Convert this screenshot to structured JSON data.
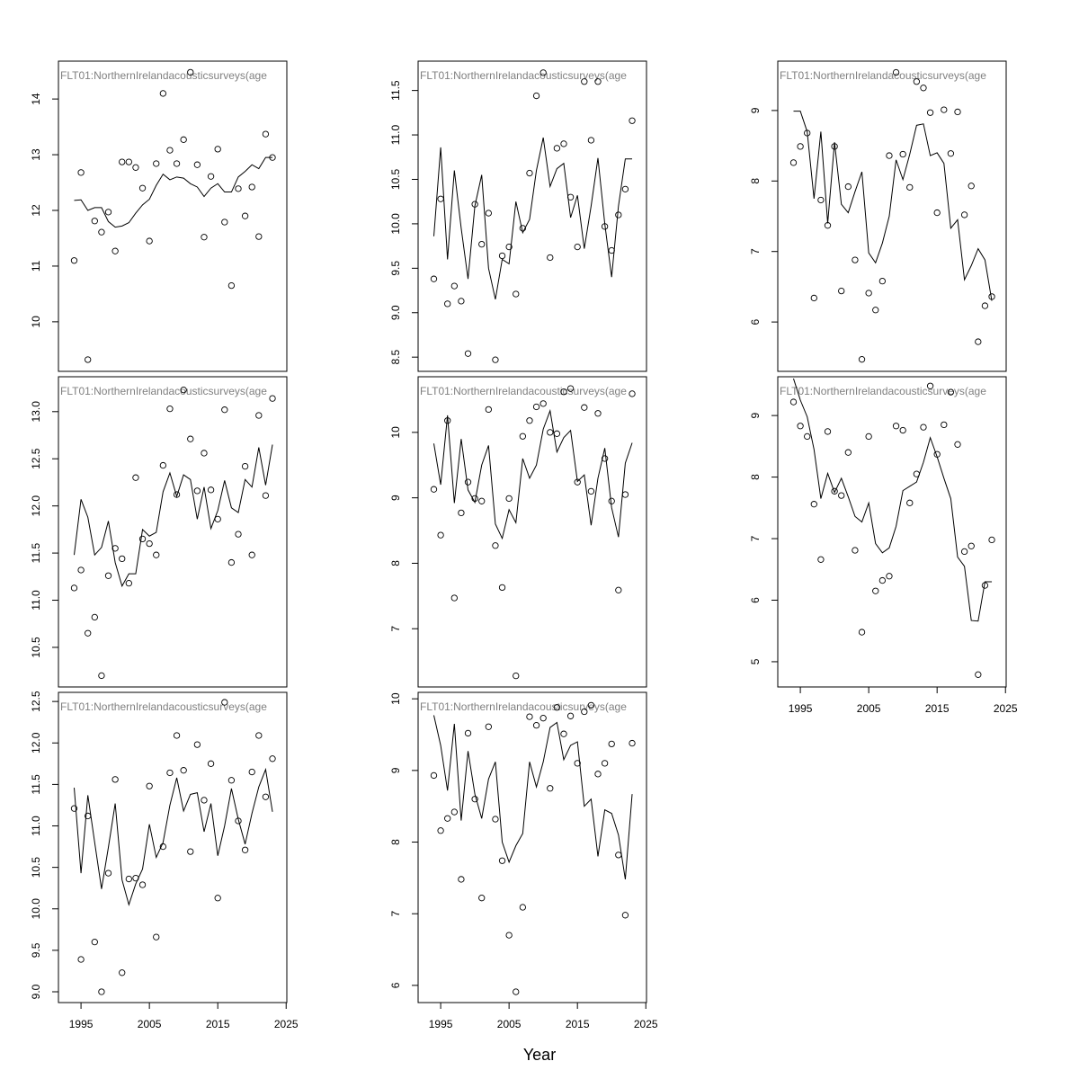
{
  "x_label": "Year",
  "chart_data": [
    {
      "type": "line",
      "title": "FLT01:NorthernIrelandacousticsurveys(age",
      "x": [
        1994,
        1995,
        1996,
        1997,
        1998,
        1999,
        2000,
        2001,
        2002,
        2003,
        2004,
        2005,
        2006,
        2007,
        2008,
        2009,
        2010,
        2011,
        2012,
        2013,
        2014,
        2015,
        2016,
        2017,
        2018,
        2019,
        2020,
        2021,
        2022,
        2023
      ],
      "series": [
        {
          "mode": "points",
          "color": "#000000",
          "values": [
            11.1,
            12.68,
            9.32,
            11.81,
            11.61,
            11.97,
            11.27,
            12.87,
            12.87,
            12.77,
            12.4,
            11.45,
            12.84,
            14.1,
            13.08,
            12.84,
            13.27,
            14.48,
            12.82,
            11.52,
            12.61,
            13.1,
            11.79,
            10.65,
            12.39,
            11.9,
            12.42,
            11.53,
            13.37,
            12.95
          ]
        },
        {
          "mode": "line",
          "color": "#000000",
          "values": [
            12.18,
            12.19,
            12.0,
            12.05,
            12.05,
            11.8,
            11.7,
            11.72,
            11.78,
            11.95,
            12.1,
            12.2,
            12.45,
            12.65,
            12.55,
            12.6,
            12.58,
            12.48,
            12.42,
            12.25,
            12.4,
            12.48,
            12.33,
            12.33,
            12.6,
            12.7,
            12.82,
            12.75,
            12.95,
            12.95
          ]
        }
      ],
      "xlim": [
        1991.7,
        2025.1
      ],
      "ylim": [
        9.11,
        14.68
      ],
      "yticks": [
        10,
        11,
        12,
        13,
        14
      ]
    },
    {
      "type": "line",
      "title": "FLT01:NorthernIrelandacousticsurveys(age",
      "x": [
        1994,
        1995,
        1996,
        1997,
        1998,
        1999,
        2000,
        2001,
        2002,
        2003,
        2004,
        2005,
        2006,
        2007,
        2008,
        2009,
        2010,
        2011,
        2012,
        2013,
        2014,
        2015,
        2016,
        2017,
        2018,
        2019,
        2020,
        2021,
        2022,
        2023
      ],
      "series": [
        {
          "mode": "points",
          "color": "#000000",
          "values": [
            9.38,
            10.28,
            9.1,
            9.3,
            9.13,
            8.54,
            10.22,
            9.77,
            10.12,
            8.47,
            9.64,
            9.74,
            9.21,
            9.95,
            10.57,
            11.44,
            11.7,
            9.62,
            10.85,
            10.9,
            10.3,
            9.74,
            11.6,
            10.94,
            11.6,
            9.97,
            9.7,
            10.1,
            10.39,
            11.16
          ]
        },
        {
          "mode": "line",
          "color": "#000000",
          "values": [
            9.86,
            10.86,
            9.6,
            10.6,
            9.95,
            9.38,
            10.2,
            10.55,
            9.5,
            9.15,
            9.6,
            9.55,
            10.25,
            9.9,
            10.05,
            10.6,
            10.97,
            10.42,
            10.62,
            10.68,
            10.07,
            10.32,
            9.72,
            10.2,
            10.74,
            10.0,
            9.4,
            10.2,
            10.73,
            10.73
          ]
        }
      ],
      "xlim": [
        1991.7,
        2025.1
      ],
      "ylim": [
        8.34,
        11.83
      ],
      "yticks": [
        8.5,
        {
          "value": 9,
          "label": "9.0"
        },
        9.5,
        {
          "value": 10,
          "label": "10.0"
        },
        10.5,
        {
          "value": 11,
          "label": "11.0"
        },
        11.5
      ]
    },
    {
      "type": "line",
      "title": "FLT01:NorthernIrelandacousticsurveys(age",
      "x": [
        1994,
        1995,
        1996,
        1997,
        1998,
        1999,
        2000,
        2001,
        2002,
        2003,
        2004,
        2005,
        2006,
        2007,
        2008,
        2009,
        2010,
        2011,
        2012,
        2013,
        2014,
        2015,
        2016,
        2017,
        2018,
        2019,
        2020,
        2021,
        2022,
        2023
      ],
      "series": [
        {
          "mode": "points",
          "color": "#000000",
          "values": [
            8.26,
            8.49,
            8.68,
            6.34,
            7.73,
            7.37,
            8.49,
            6.44,
            7.92,
            6.88,
            5.47,
            6.41,
            6.17,
            6.58,
            8.36,
            9.54,
            8.38,
            7.91,
            9.41,
            9.32,
            8.97,
            7.55,
            9.01,
            8.39,
            8.98,
            7.52,
            7.93,
            5.72,
            6.23,
            6.36
          ]
        },
        {
          "mode": "line",
          "color": "#000000",
          "values": [
            8.99,
            8.99,
            8.7,
            7.75,
            8.7,
            7.4,
            8.55,
            7.67,
            7.55,
            7.85,
            8.13,
            6.98,
            6.84,
            7.12,
            7.5,
            8.3,
            8.02,
            8.38,
            8.79,
            8.81,
            8.36,
            8.4,
            8.25,
            7.33,
            7.45,
            6.6,
            6.8,
            7.04,
            6.88,
            6.3
          ]
        }
      ],
      "xlim": [
        1991.7,
        2025.1
      ],
      "ylim": [
        5.3,
        9.7
      ],
      "yticks": [
        6,
        7,
        8,
        9
      ]
    },
    {
      "type": "line",
      "title": "FLT01:NorthernIrelandacousticsurveys(age",
      "x": [
        1994,
        1995,
        1996,
        1997,
        1998,
        1999,
        2000,
        2001,
        2002,
        2003,
        2004,
        2005,
        2006,
        2007,
        2008,
        2009,
        2010,
        2011,
        2012,
        2013,
        2014,
        2015,
        2016,
        2017,
        2018,
        2019,
        2020,
        2021,
        2022,
        2023
      ],
      "series": [
        {
          "mode": "points",
          "color": "#000000",
          "values": [
            11.13,
            11.32,
            10.65,
            10.82,
            10.2,
            11.26,
            11.55,
            11.44,
            11.18,
            12.3,
            11.65,
            11.6,
            11.48,
            12.43,
            13.03,
            12.12,
            13.23,
            12.71,
            12.16,
            12.56,
            12.17,
            11.86,
            13.02,
            11.4,
            11.7,
            12.42,
            11.48,
            12.96,
            12.11,
            13.14
          ]
        },
        {
          "mode": "line",
          "color": "#000000",
          "values": [
            11.48,
            12.07,
            11.88,
            11.48,
            11.56,
            11.84,
            11.4,
            11.15,
            11.28,
            11.28,
            11.75,
            11.68,
            11.72,
            12.15,
            12.35,
            12.1,
            12.33,
            12.28,
            11.86,
            12.2,
            11.76,
            11.95,
            12.27,
            11.98,
            11.93,
            12.28,
            12.2,
            12.62,
            12.22,
            12.65
          ]
        }
      ],
      "xlim": [
        1991.7,
        2025.1
      ],
      "ylim": [
        10.08,
        13.37
      ],
      "yticks": [
        10.5,
        {
          "value": 11,
          "label": "11.0"
        },
        11.5,
        {
          "value": 12,
          "label": "12.0"
        },
        12.5,
        {
          "value": 13,
          "label": "13.0"
        }
      ]
    },
    {
      "type": "line",
      "title": "FLT01:NorthernIrelandacousticsurveys(age",
      "x": [
        1994,
        1995,
        1996,
        1997,
        1998,
        1999,
        2000,
        2001,
        2002,
        2003,
        2004,
        2005,
        2006,
        2007,
        2008,
        2009,
        2010,
        2011,
        2012,
        2013,
        2014,
        2015,
        2016,
        2017,
        2018,
        2019,
        2020,
        2021,
        2022,
        2023
      ],
      "series": [
        {
          "mode": "points",
          "color": "#000000",
          "values": [
            9.13,
            8.43,
            10.18,
            7.47,
            8.77,
            9.24,
            8.99,
            8.95,
            10.35,
            8.27,
            7.63,
            8.99,
            6.28,
            9.94,
            10.18,
            10.39,
            10.44,
            10.0,
            9.98,
            10.62,
            10.67,
            9.24,
            10.38,
            9.1,
            10.29,
            9.6,
            8.95,
            7.59,
            9.05,
            10.59
          ]
        },
        {
          "mode": "line",
          "color": "#000000",
          "values": [
            9.83,
            9.2,
            10.26,
            8.92,
            9.9,
            9.12,
            8.93,
            9.5,
            9.8,
            8.6,
            8.38,
            8.82,
            8.62,
            9.6,
            9.3,
            9.5,
            10.05,
            10.33,
            9.7,
            9.92,
            10.03,
            9.25,
            9.35,
            8.58,
            9.3,
            9.76,
            8.85,
            8.4,
            9.53,
            9.84
          ]
        }
      ],
      "xlim": [
        1991.7,
        2025.1
      ],
      "ylim": [
        6.11,
        10.85
      ],
      "yticks": [
        7,
        8,
        9,
        10
      ]
    },
    {
      "type": "line",
      "title": "FLT01:NorthernIrelandacousticsurveys(age",
      "x": [
        1994,
        1995,
        1996,
        1997,
        1998,
        1999,
        2000,
        2001,
        2002,
        2003,
        2004,
        2005,
        2006,
        2007,
        2008,
        2009,
        2010,
        2011,
        2012,
        2013,
        2014,
        2015,
        2016,
        2017,
        2018,
        2019,
        2020,
        2021,
        2022,
        2023
      ],
      "series": [
        {
          "mode": "points",
          "color": "#000000",
          "values": [
            9.22,
            8.83,
            8.66,
            7.56,
            6.66,
            8.74,
            7.77,
            7.7,
            8.4,
            6.81,
            5.48,
            8.66,
            6.15,
            6.32,
            6.39,
            8.83,
            8.76,
            7.58,
            8.05,
            8.81,
            9.48,
            8.37,
            8.85,
            9.38,
            8.53,
            6.79,
            6.88,
            4.79,
            6.24,
            6.98
          ]
        },
        {
          "mode": "line",
          "color": "#000000",
          "values": [
            9.6,
            9.25,
            8.98,
            8.45,
            7.65,
            8.06,
            7.75,
            7.98,
            7.68,
            7.36,
            7.27,
            7.58,
            6.92,
            6.77,
            6.85,
            7.2,
            7.78,
            7.85,
            7.92,
            8.24,
            8.64,
            8.33,
            7.98,
            7.65,
            6.7,
            6.55,
            5.67,
            5.66,
            6.3,
            6.3
          ]
        }
      ],
      "xlim": [
        1991.7,
        2025.1
      ],
      "ylim": [
        4.59,
        9.63
      ],
      "yticks": [
        5,
        6,
        7,
        8,
        9
      ],
      "xticks": [
        1995,
        2005,
        2015,
        2025
      ]
    },
    {
      "type": "line",
      "title": "FLT01:NorthernIrelandacousticsurveys(age",
      "x": [
        1994,
        1995,
        1996,
        1997,
        1998,
        1999,
        2000,
        2001,
        2002,
        2003,
        2004,
        2005,
        2006,
        2007,
        2008,
        2009,
        2010,
        2011,
        2012,
        2013,
        2014,
        2015,
        2016,
        2017,
        2018,
        2019,
        2020,
        2021,
        2022,
        2023
      ],
      "series": [
        {
          "mode": "points",
          "color": "#000000",
          "values": [
            11.21,
            9.39,
            11.12,
            9.6,
            9.0,
            10.43,
            11.56,
            9.23,
            10.36,
            10.37,
            10.29,
            11.48,
            9.66,
            10.75,
            11.64,
            12.09,
            11.67,
            10.69,
            11.98,
            11.31,
            11.75,
            10.13,
            12.49,
            11.55,
            11.06,
            10.71,
            11.65,
            12.09,
            11.35,
            11.81
          ]
        },
        {
          "mode": "line",
          "color": "#000000",
          "values": [
            11.46,
            10.43,
            11.37,
            10.8,
            10.24,
            10.74,
            11.27,
            10.35,
            10.05,
            10.3,
            10.48,
            11.02,
            10.62,
            10.8,
            11.25,
            11.58,
            11.18,
            11.38,
            11.4,
            10.93,
            11.27,
            10.64,
            11.0,
            11.45,
            11.08,
            10.78,
            11.15,
            11.47,
            11.68,
            11.17
          ]
        }
      ],
      "xlim": [
        1991.7,
        2025.1
      ],
      "ylim": [
        8.87,
        12.61
      ],
      "yticks": [
        {
          "value": 9,
          "label": "9.0"
        },
        9.5,
        {
          "value": 10,
          "label": "10.0"
        },
        10.5,
        {
          "value": 11,
          "label": "11.0"
        },
        11.5,
        {
          "value": 12,
          "label": "12.0"
        },
        12.5
      ],
      "xticks": [
        1995,
        2005,
        2015,
        2025
      ]
    },
    {
      "type": "line",
      "title": "FLT01:NorthernIrelandacousticsurveys(age",
      "x": [
        1994,
        1995,
        1996,
        1997,
        1998,
        1999,
        2000,
        2001,
        2002,
        2003,
        2004,
        2005,
        2006,
        2007,
        2008,
        2009,
        2010,
        2011,
        2012,
        2013,
        2014,
        2015,
        2016,
        2017,
        2018,
        2019,
        2020,
        2021,
        2022,
        2023
      ],
      "series": [
        {
          "mode": "points",
          "color": "#000000",
          "values": [
            8.93,
            8.16,
            8.33,
            8.42,
            7.48,
            9.52,
            8.6,
            7.22,
            9.61,
            8.32,
            7.74,
            6.7,
            5.91,
            7.09,
            9.75,
            9.63,
            9.73,
            8.75,
            9.88,
            9.51,
            9.76,
            9.1,
            9.82,
            9.91,
            8.95,
            9.1,
            9.37,
            7.82,
            6.98,
            9.38
          ]
        },
        {
          "mode": "line",
          "color": "#000000",
          "values": [
            9.77,
            9.35,
            8.72,
            9.65,
            8.3,
            9.27,
            8.67,
            8.33,
            8.88,
            9.12,
            8.0,
            7.72,
            7.95,
            8.12,
            9.12,
            8.77,
            9.12,
            9.6,
            9.67,
            9.15,
            9.35,
            9.4,
            8.5,
            8.6,
            7.8,
            8.45,
            8.4,
            8.1,
            7.48,
            8.67
          ]
        }
      ],
      "xlim": [
        1991.7,
        2025.1
      ],
      "ylim": [
        5.76,
        10.09
      ],
      "yticks": [
        6,
        7,
        8,
        9,
        10
      ],
      "xticks": [
        1995,
        2005,
        2015,
        2025
      ]
    }
  ]
}
